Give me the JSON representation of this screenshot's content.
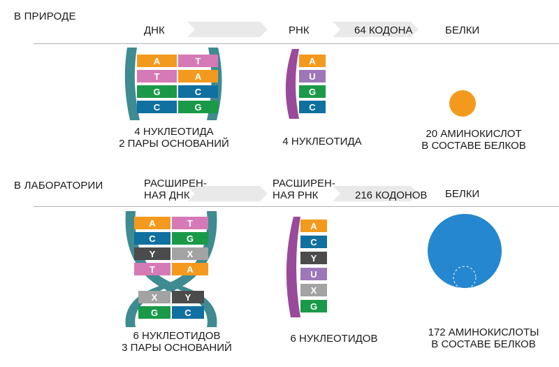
{
  "nature": {
    "title": "В ПРИРОДЕ",
    "dna_label": "ДНК",
    "rna_label": "РНК",
    "codons_label": "64 КОДОНА",
    "proteins_label": "БЕЛКИ",
    "dna_caption_1": "4 НУКЛЕОТИДА",
    "dna_caption_2": "2 ПАРЫ ОСНОВАНИЙ",
    "rna_caption": "4 НУКЛЕОТИДА",
    "protein_caption_1": "20 АМИНОКИСЛОТ",
    "protein_caption_2": "В СОСТАВЕ БЕЛКОВ",
    "dna_pairs": [
      [
        "A",
        "T"
      ],
      [
        "T",
        "A"
      ],
      [
        "G",
        "C"
      ],
      [
        "C",
        "G"
      ]
    ],
    "rna_bases": [
      "A",
      "U",
      "G",
      "C"
    ]
  },
  "lab": {
    "title": "В ЛАБОРАТОРИИ",
    "dna_label_1": "РАСШИРЕН-",
    "dna_label_2": "НАЯ ДНК",
    "rna_label_1": "РАСШИРЕН-",
    "rna_label_2": "НАЯ РНК",
    "codons_label": "216 КОДОНОВ",
    "proteins_label": "БЕЛКИ",
    "dna_caption_1": "6 НУКЛЕОТИДОВ",
    "dna_caption_2": "3 ПАРЫ ОСНОВАНИЙ",
    "rna_caption": "6 НУКЛЕОТИДОВ",
    "protein_caption_1": "172 АМИНОКИСЛОТЫ",
    "protein_caption_2": "В СОСТАВЕ БЕЛКОВ",
    "dna_pairs_top": [
      [
        "A",
        "T"
      ],
      [
        "C",
        "G"
      ],
      [
        "Y",
        "X"
      ],
      [
        "T",
        "A"
      ]
    ],
    "dna_pairs_bottom": [
      [
        "X",
        "Y"
      ],
      [
        "G",
        "C"
      ]
    ],
    "rna_bases": [
      "A",
      "C",
      "Y",
      "U",
      "X",
      "G"
    ]
  },
  "colors": {
    "A": "#f39a1e",
    "T": "#d57ab6",
    "G": "#1a9a48",
    "C": "#10709f",
    "U": "#9d77b8",
    "X": "#a3a3a3",
    "Y": "#4b4b4b",
    "backbone": "#3e8b91",
    "rna_backbone": "#9a4a9a",
    "arrow": "#e9e9e9",
    "rule": "#b0b0b0",
    "amino_small": "#f39a1e",
    "amino_large": "#2487cf"
  }
}
